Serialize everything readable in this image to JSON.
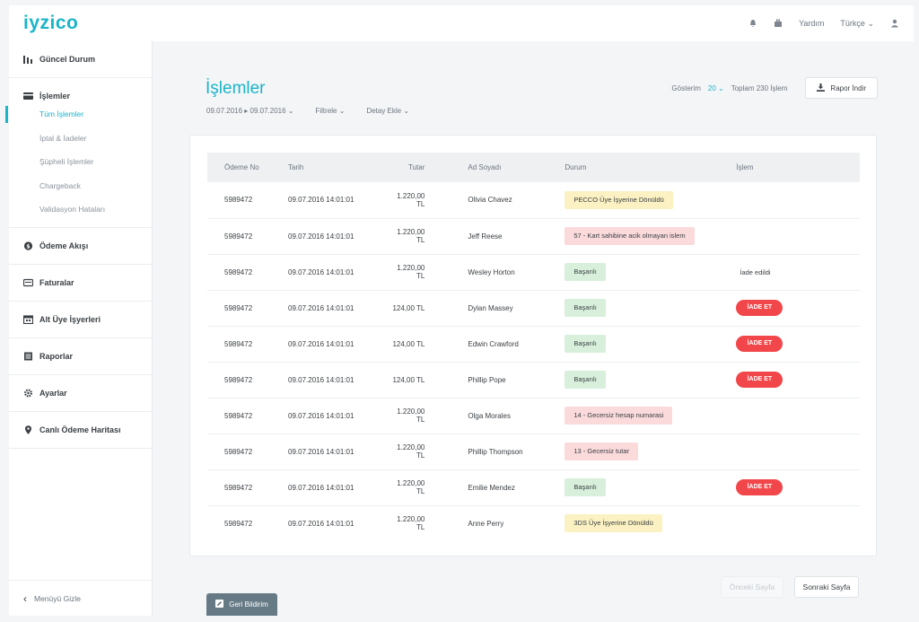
{
  "header": {
    "logo": "iyzico",
    "help_label": "Yardım",
    "language_label": "Türkçe"
  },
  "sidebar": {
    "groups": [
      {
        "label": "Güncel Durum",
        "icon": "bar-chart-icon"
      },
      {
        "label": "İşlemler",
        "icon": "card-icon",
        "subitems": [
          "Tüm İşlemler",
          "İptal & İadeler",
          "Şüpheli İşlemler",
          "Chargeback",
          "Validasyon Hataları"
        ],
        "active_sub": 0
      },
      {
        "label": "Ödeme Akışı",
        "icon": "coin-icon"
      },
      {
        "label": "Faturalar",
        "icon": "invoice-icon"
      },
      {
        "label": "Alt Üye İşyerleri",
        "icon": "store-icon"
      },
      {
        "label": "Raporlar",
        "icon": "report-icon"
      },
      {
        "label": "Ayarlar",
        "icon": "gear-icon"
      },
      {
        "label": "Canlı Ödeme Haritası",
        "icon": "map-pin-icon"
      }
    ],
    "hide_label": "Menüyü Gizle"
  },
  "main": {
    "title": "İşlemler",
    "date_range": "09.07.2016 ▸ 09.07.2016",
    "filter_label": "Filtrele",
    "add_detail_label": "Detay Ekle",
    "show_label": "Gösterim",
    "page_size": "20",
    "total_label": "Toplam 230 İşlem",
    "report_button": "Rapor İndir"
  },
  "table": {
    "columns": [
      "Ödeme No",
      "Tarih",
      "Tutar",
      "Ad Soyadı",
      "Durum",
      "İşlem"
    ],
    "rows": [
      {
        "id": "5989472",
        "date": "09.07.2016  14:01:01",
        "amount": "1.220,00 TL",
        "name": "Olivia Chavez",
        "status": "PECCO Üye İşyerine Dönüldü",
        "status_type": "warning",
        "action": ""
      },
      {
        "id": "5989472",
        "date": "09.07.2016  14:01:01",
        "amount": "1.220,00 TL",
        "name": "Jeff Reese",
        "status": "57 - Kart sahibine acik olmayan islem",
        "status_type": "error",
        "action": ""
      },
      {
        "id": "5989472",
        "date": "09.07.2016  14:01:01",
        "amount": "1.220,00 TL",
        "name": "Wesley Horton",
        "status": "Başarılı",
        "status_type": "success",
        "action": "İade edildi",
        "action_type": "text"
      },
      {
        "id": "5989472",
        "date": "09.07.2016  14:01:01",
        "amount": "124,00 TL",
        "name": "Dylan Massey",
        "status": "Başarılı",
        "status_type": "success",
        "action": "İADE ET",
        "action_type": "button"
      },
      {
        "id": "5989472",
        "date": "09.07.2016  14:01:01",
        "amount": "124,00 TL",
        "name": "Edwin Crawford",
        "status": "Başarılı",
        "status_type": "success",
        "action": "İADE ET",
        "action_type": "button"
      },
      {
        "id": "5989472",
        "date": "09.07.2016  14:01:01",
        "amount": "124,00 TL",
        "name": "Phillip Pope",
        "status": "Başarılı",
        "status_type": "success",
        "action": "İADE ET",
        "action_type": "button"
      },
      {
        "id": "5989472",
        "date": "09.07.2016  14:01:01",
        "amount": "1.220,00 TL",
        "name": "Olga Morales",
        "status": "14 - Gecersiz hesap numarasi",
        "status_type": "error",
        "action": ""
      },
      {
        "id": "5989472",
        "date": "09.07.2016  14:01:01",
        "amount": "1.220,00 TL",
        "name": "Phillip Thompson",
        "status": "13 - Gecersiz tutar",
        "status_type": "error",
        "action": ""
      },
      {
        "id": "5989472",
        "date": "09.07.2016  14:01:01",
        "amount": "1.220,00 TL",
        "name": "Emilie Mendez",
        "status": "Başarılı",
        "status_type": "success",
        "action": "İADE ET",
        "action_type": "button"
      },
      {
        "id": "5989472",
        "date": "09.07.2016  14:01:01",
        "amount": "1.220,00 TL",
        "name": "Anne Perry",
        "status": "3DS Üye İşyerine Dönüldü",
        "status_type": "warning",
        "action": ""
      }
    ]
  },
  "pagination": {
    "prev_label": "Önceki Sayfa",
    "next_label": "Sonraki Sayfa"
  },
  "feedback_label": "Geri Bildirim",
  "colors": {
    "accent": "#19b5c9",
    "danger": "#f2474a"
  }
}
